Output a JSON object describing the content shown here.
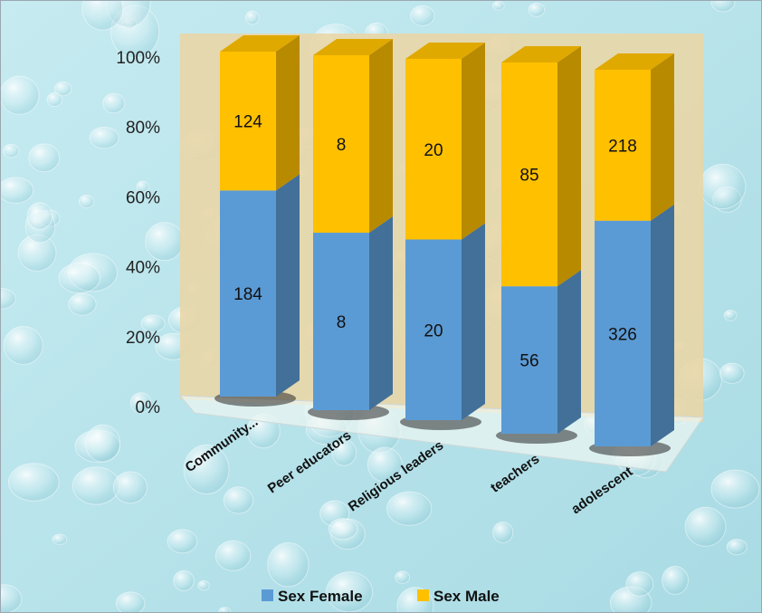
{
  "colors": {
    "female": "#5b9bd5",
    "male": "#ffc000",
    "background": "#b9e3ea",
    "back_wall": "#e9d6a7"
  },
  "chart_data": {
    "type": "bar",
    "stacked": "percent",
    "style": "3d-column",
    "categories": [
      "Community...",
      "Peer educators",
      "Religious leaders",
      "teachers",
      "adolescent"
    ],
    "series": [
      {
        "name": "Sex Female",
        "values": [
          184,
          8,
          20,
          56,
          326
        ]
      },
      {
        "name": "Sex Male",
        "values": [
          124,
          8,
          20,
          85,
          218
        ]
      }
    ],
    "ylim": [
      0,
      100
    ],
    "y_ticks": [
      "0%",
      "20%",
      "40%",
      "60%",
      "80%",
      "100%"
    ],
    "legend": "bottom",
    "data_labels": true
  }
}
